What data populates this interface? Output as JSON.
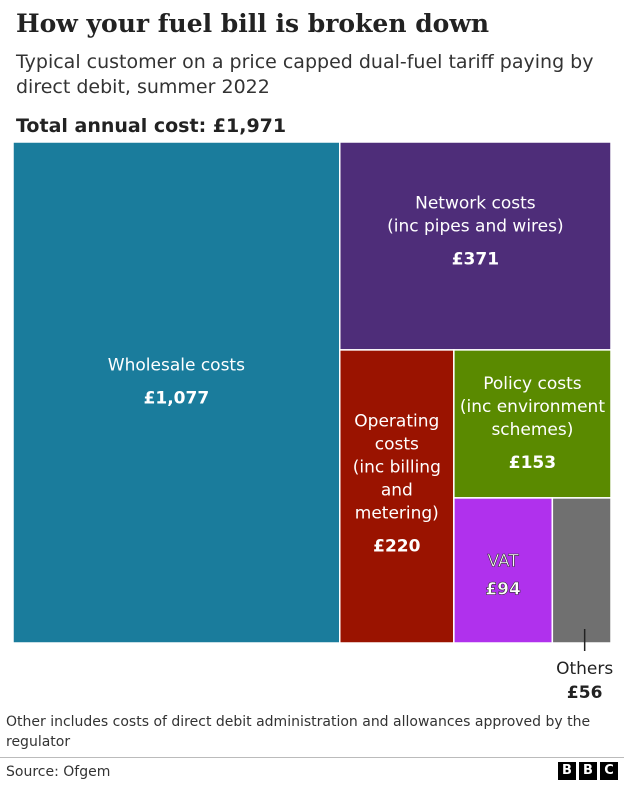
{
  "header": {
    "title": "How your fuel bill is broken down",
    "subtitle": "Typical customer on a price capped dual-fuel tariff paying by direct debit, summer 2022",
    "total": "Total annual cost: £1,971"
  },
  "chart_data": {
    "type": "treemap",
    "unit": "£",
    "total": 1971,
    "segments": [
      {
        "name": "Wholesale costs",
        "lines": [
          "Wholesale costs"
        ],
        "value": 1077,
        "value_label": "£1,077",
        "color": "#1a7c9c",
        "text_color": "#ffffff"
      },
      {
        "name": "Network costs (inc pipes and wires)",
        "lines": [
          "Network costs",
          "(inc pipes and wires)"
        ],
        "value": 371,
        "value_label": "£371",
        "color": "#4e2d79",
        "text_color": "#ffffff"
      },
      {
        "name": "Operating costs (inc billing and metering)",
        "lines": [
          "Operating",
          "costs",
          "(inc billing",
          "and",
          "metering)"
        ],
        "value": 220,
        "value_label": "£220",
        "color": "#9a1300",
        "text_color": "#ffffff"
      },
      {
        "name": "Policy costs (inc environment schemes)",
        "lines": [
          "Policy costs",
          "(inc environment",
          "schemes)"
        ],
        "value": 153,
        "value_label": "£153",
        "color": "#5a8a00",
        "text_color": "#ffffff"
      },
      {
        "name": "VAT",
        "lines": [
          "VAT"
        ],
        "value": 94,
        "value_label": "£94",
        "color": "#b031ed",
        "text_color": "#ffffff"
      },
      {
        "name": "Others",
        "lines": [
          "Others"
        ],
        "value": 56,
        "value_label": "£56",
        "color": "#707070",
        "text_color": "#222222"
      }
    ]
  },
  "footer": {
    "note": "Other includes costs of direct debit administration and allowances approved by the regulator",
    "source": "Source: Ofgem",
    "logo_letters": [
      "B",
      "B",
      "C"
    ]
  }
}
